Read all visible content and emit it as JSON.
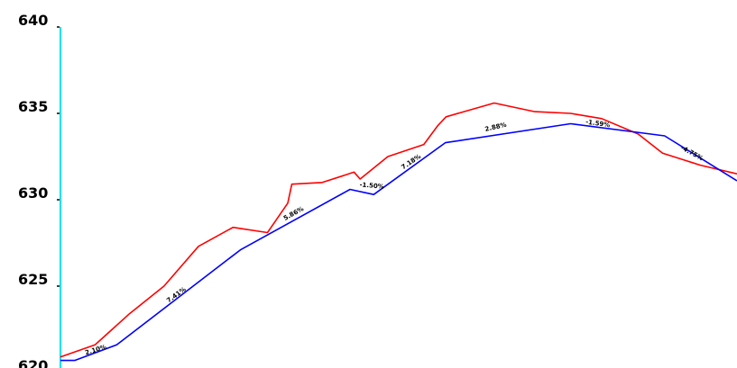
{
  "chart_data": {
    "type": "line",
    "title": "",
    "xlabel": "",
    "ylabel": "",
    "ylim": [
      620,
      640
    ],
    "xlim": [
      0,
      100
    ],
    "yticks": [
      620,
      625,
      630,
      635,
      640
    ],
    "ytick_labels": [
      "620",
      "625",
      "630",
      "635",
      "640"
    ],
    "grid": false,
    "legend": "none",
    "colors": {
      "axis": "#00e5ee",
      "existing_ground": "#ff0000",
      "profile": "#0000ff",
      "text": "#000000"
    },
    "series": [
      {
        "key": "existing_ground",
        "x": [
          0,
          5.1,
          10.2,
          15.3,
          20.4,
          25.5,
          30.6,
          33.6,
          34.2,
          38.7,
          43.4,
          44.3,
          48.4,
          53.7,
          55.8,
          57.0,
          64.1,
          70.1,
          75.4,
          80.0,
          85.4,
          89.0,
          94.6,
          100
        ],
        "y": [
          620.9,
          621.8,
          623.5,
          625.0,
          627.3,
          628.4,
          628.1,
          629.9,
          630.9,
          630.9,
          631.6,
          631.2,
          632.5,
          633.3,
          634.4,
          635.6,
          635.0,
          634.7,
          633.8,
          632.7,
          631.9,
          631.5,
          630.8,
          630.5
        ],
        "display_y": [
          620.9,
          621.6,
          623.4,
          625.0,
          627.3,
          628.4,
          628.1,
          629.8,
          630.9,
          631.0,
          631.6,
          631.2,
          632.5,
          633.2,
          634.3,
          634.8,
          635.6,
          635.1,
          635.0,
          634.7,
          633.8,
          632.7,
          632.0,
          631.5
        ]
      },
      {
        "key": "profile",
        "x": [
          0,
          2.1,
          8.3,
          26.6,
          42.8,
          46.3,
          56.9,
          75.4,
          89.3,
          100
        ],
        "y": [
          620.7,
          620.7,
          621.6,
          627.1,
          630.6,
          630.3,
          633.3,
          634.4,
          633.7,
          631.1
        ]
      }
    ],
    "annotations": [
      {
        "text": "2.10%",
        "x": 5.3,
        "y": 621.2,
        "angle": -17
      },
      {
        "text": "7.41%",
        "x": 17.3,
        "y": 624.4,
        "angle": -36
      },
      {
        "text": "5.86%",
        "x": 34.6,
        "y": 629.1,
        "angle": -29
      },
      {
        "text": "-1.50%",
        "x": 46.0,
        "y": 630.7,
        "angle": 5
      },
      {
        "text": "7.18%",
        "x": 52.0,
        "y": 632.1,
        "angle": -34
      },
      {
        "text": "2.88%",
        "x": 64.4,
        "y": 634.1,
        "angle": -13
      },
      {
        "text": "-1.59%",
        "x": 79.4,
        "y": 634.3,
        "angle": 8
      },
      {
        "text": "-4.75%",
        "x": 93.2,
        "y": 632.6,
        "angle": 29
      }
    ]
  }
}
